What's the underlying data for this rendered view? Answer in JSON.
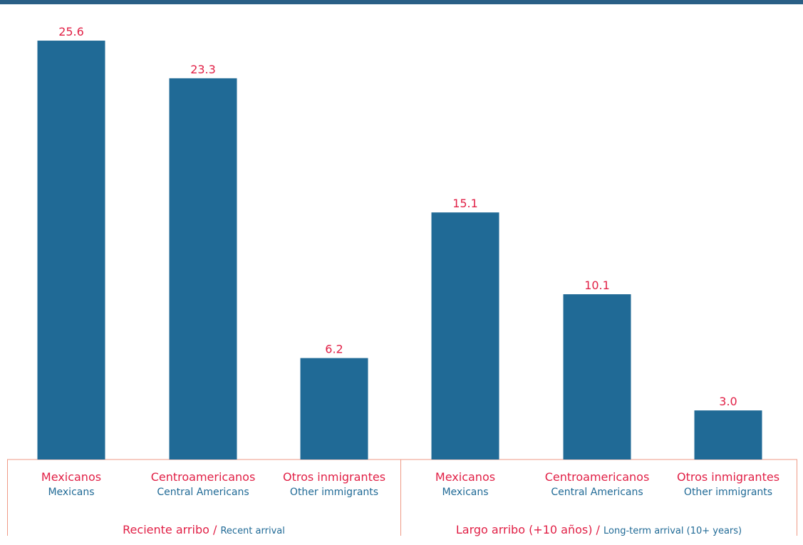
{
  "colors": {
    "bar": "#206a96",
    "label_es": "#e11f45",
    "label_en": "#206a96",
    "frame": "#ef9a86",
    "top_rule": "#2a5f86"
  },
  "chart_data": {
    "type": "bar",
    "title": "",
    "xlabel": "",
    "ylabel": "",
    "ylim": [
      0,
      27.3
    ],
    "grid": false,
    "categories": [
      {
        "es": "Mexicanos",
        "en": "Mexicans",
        "group": 0
      },
      {
        "es": "Centroamericanos",
        "en": "Central Americans",
        "group": 0
      },
      {
        "es": "Otros inmigrantes",
        "en": "Other immigrants",
        "group": 0
      },
      {
        "es": "Mexicanos",
        "en": "Mexicans",
        "group": 1
      },
      {
        "es": "Centroamericanos",
        "en": "Central Americans",
        "group": 1
      },
      {
        "es": "Otros inmigrantes",
        "en": "Other immigrants",
        "group": 1
      }
    ],
    "values": [
      25.6,
      23.3,
      6.2,
      15.1,
      10.1,
      3.0
    ],
    "value_labels": [
      "25.6",
      "23.3",
      "6.2",
      "15.1",
      "10.1",
      "3.0"
    ],
    "groups": [
      {
        "es": "Reciente arribo",
        "sep": " / ",
        "en": "Recent arrival"
      },
      {
        "es": "Largo arribo (+10 años)",
        "sep": " / ",
        "en": "Long-term arrival (10+ years)"
      }
    ]
  }
}
